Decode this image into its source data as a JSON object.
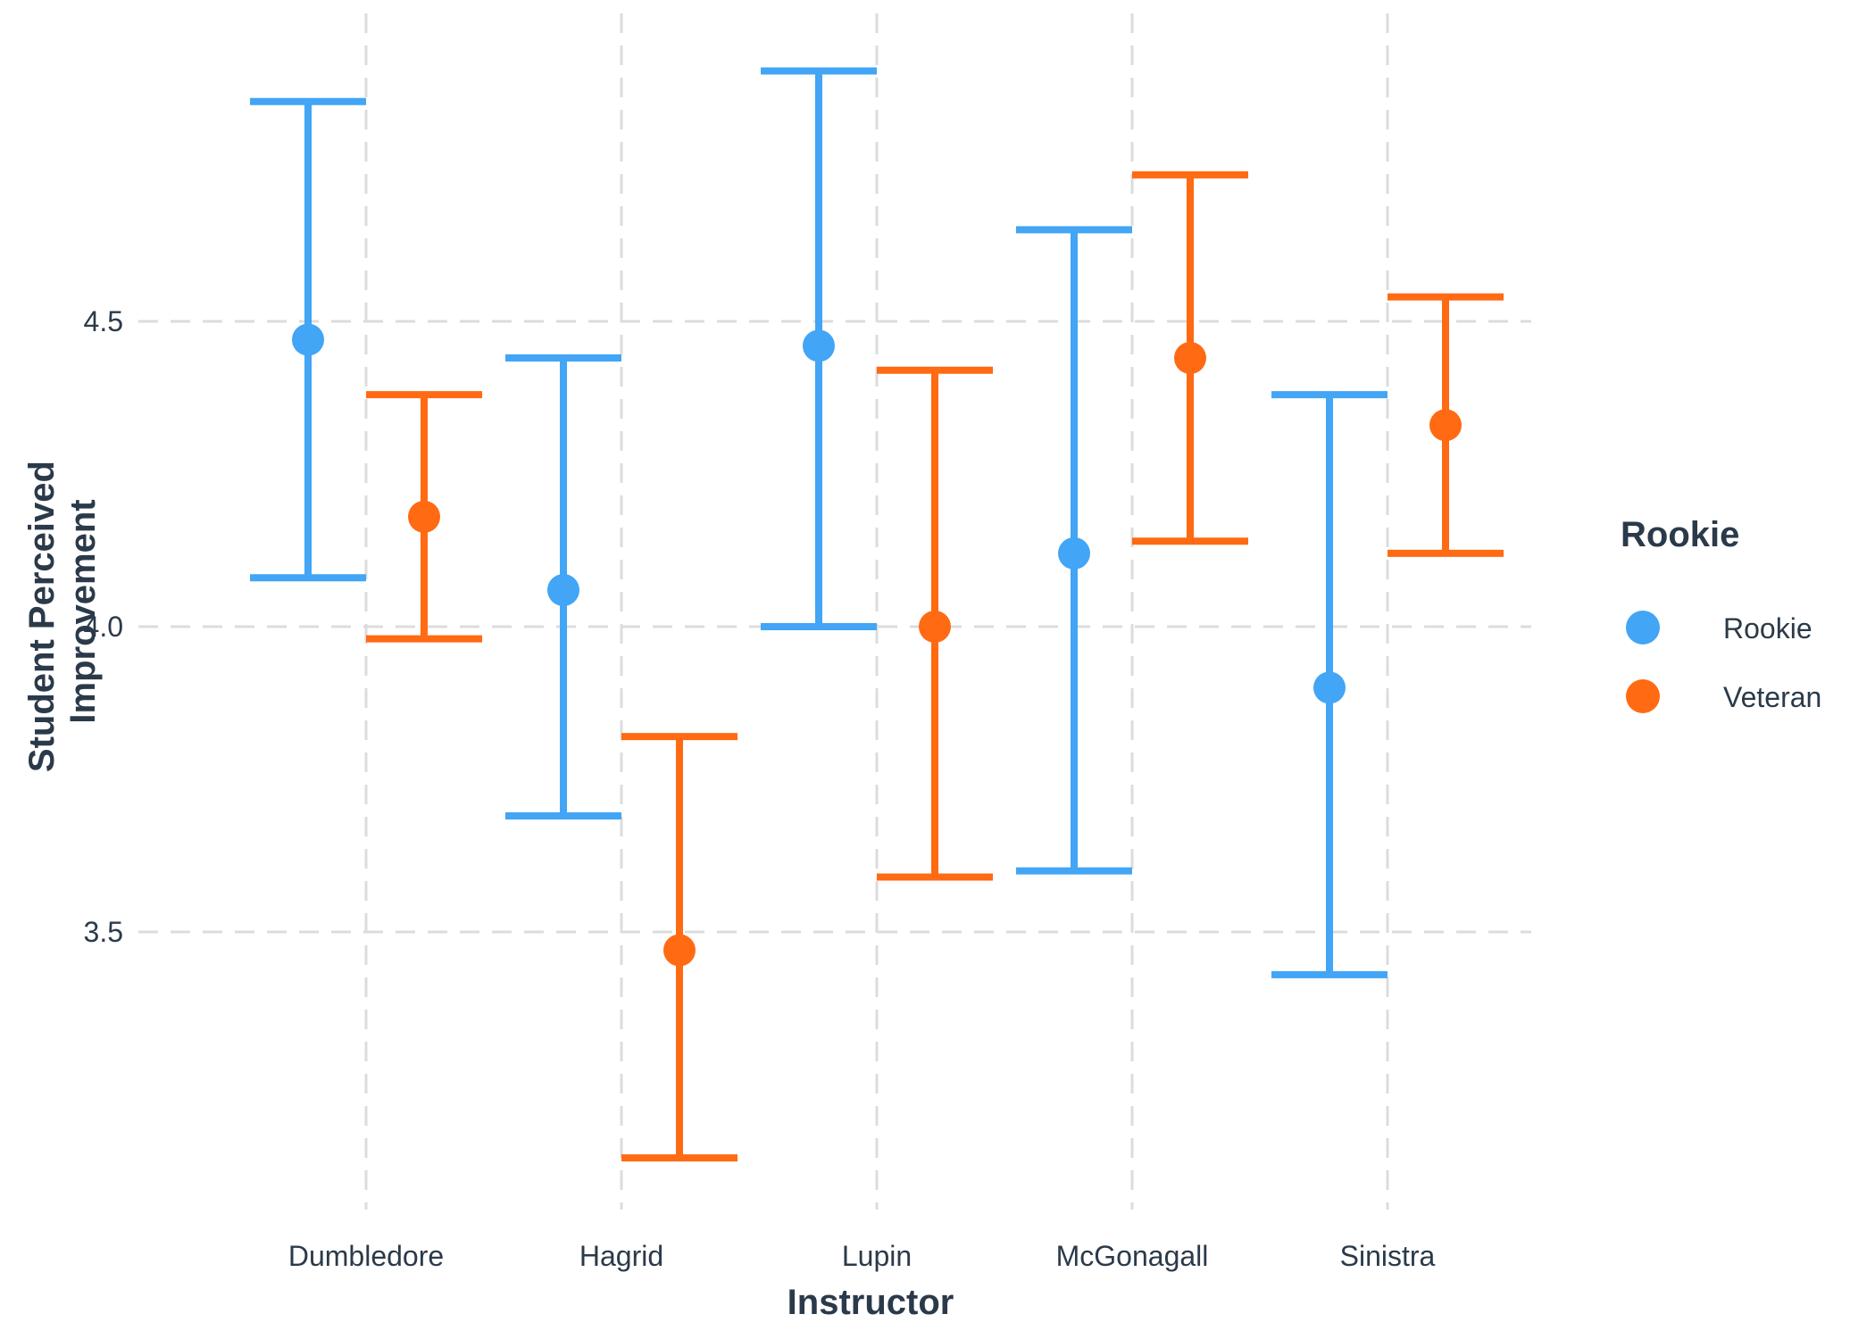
{
  "chart_data": {
    "type": "errorbar",
    "x_label": "Instructor",
    "y_label_lines": [
      "Student Perceived",
      "Improvement"
    ],
    "categories": [
      "Dumbledore",
      "Hagrid",
      "Lupin",
      "McGonagall",
      "Sinistra"
    ],
    "y_ticks": [
      3.5,
      4.0,
      4.5
    ],
    "y_tick_labels": [
      "3.5",
      "4.0",
      "4.5"
    ],
    "ylim": [
      3.05,
      4.95
    ],
    "grid": "dashed",
    "legend": {
      "title": "Rookie",
      "placement": "right",
      "entries": [
        "Rookie",
        "Veteran"
      ]
    },
    "series": [
      {
        "name": "Rookie",
        "color": "#42a5f5",
        "values": [
          4.47,
          4.06,
          4.46,
          4.12,
          3.9
        ],
        "lower": [
          4.08,
          3.69,
          4.0,
          3.6,
          3.43
        ],
        "upper": [
          4.86,
          4.44,
          4.91,
          4.65,
          4.38
        ]
      },
      {
        "name": "Veteran",
        "color": "#ff6a13",
        "values": [
          4.18,
          3.47,
          4.0,
          4.44,
          4.33
        ],
        "lower": [
          3.98,
          3.13,
          3.59,
          4.14,
          4.12
        ],
        "upper": [
          4.38,
          3.82,
          4.42,
          4.74,
          4.54
        ]
      }
    ]
  }
}
